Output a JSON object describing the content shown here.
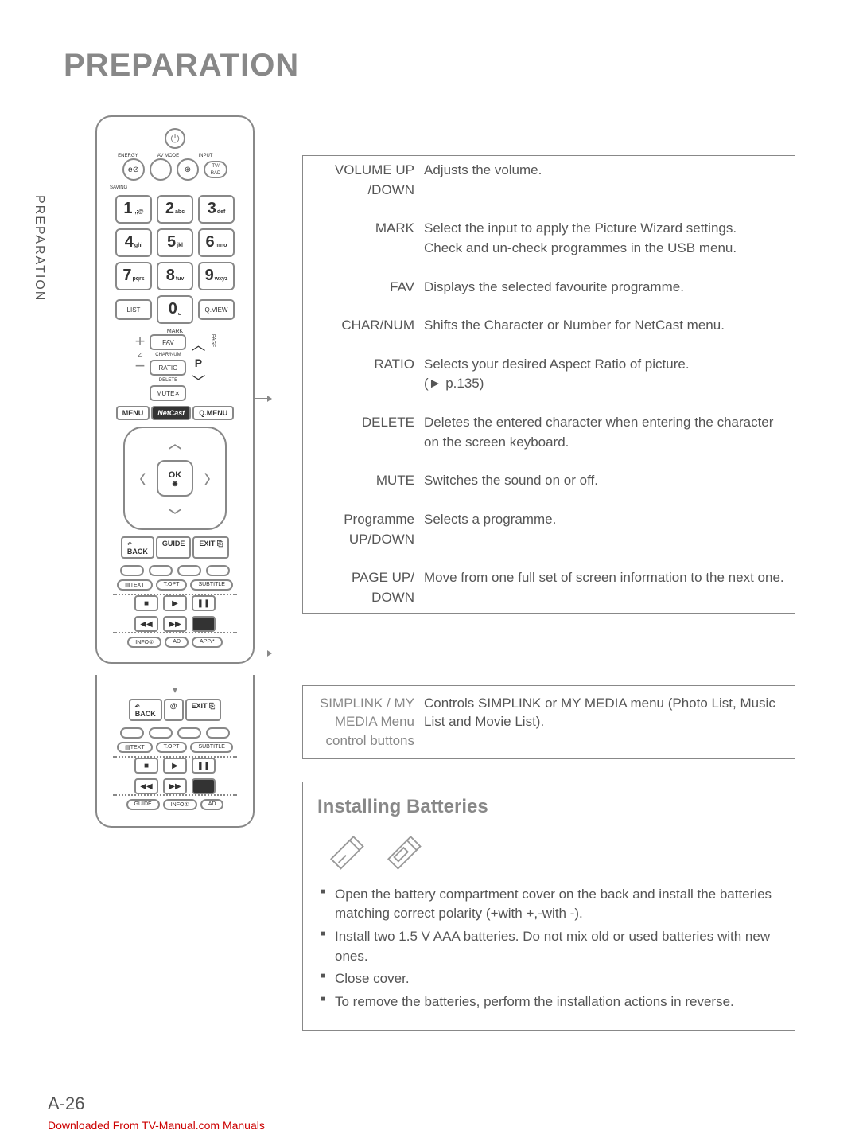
{
  "section_title": "PREPARATION",
  "vertical_label": "PREPARATION",
  "page_number": "A-26",
  "download_note": "Downloaded From TV-Manual.com Manuals",
  "remote": {
    "top_labels": [
      "ENERGY",
      "AV MODE",
      "INPUT",
      ""
    ],
    "saving": "SAVING",
    "tv_rad": "TV/\nRAD",
    "numpad": [
      {
        "n": "1",
        "s": ".,;@"
      },
      {
        "n": "2",
        "s": "abc"
      },
      {
        "n": "3",
        "s": "def"
      },
      {
        "n": "4",
        "s": "ghi"
      },
      {
        "n": "5",
        "s": "jkl"
      },
      {
        "n": "6",
        "s": "mno"
      },
      {
        "n": "7",
        "s": "pqrs"
      },
      {
        "n": "8",
        "s": "tuv"
      },
      {
        "n": "9",
        "s": "wxyz"
      }
    ],
    "list": "LIST",
    "zero": "0",
    "qview": "Q.VIEW",
    "mark": "MARK",
    "fav": "FAV",
    "charnum": "CHAR/NUM",
    "ratio": "RATIO",
    "delete": "DELETE",
    "mute": "MUTE",
    "p": "P",
    "page": "PAGE",
    "menu": "MENU",
    "netcast": "NetCast",
    "qmenu": "Q.MENU",
    "ok": "OK",
    "back": "BACK",
    "guide": "GUIDE",
    "exit": "EXIT",
    "text": "TEXT",
    "topt": "T.OPT",
    "subtitle": "SUBTITLE",
    "info": "INFO①",
    "ad": "AD",
    "app": "APP/*",
    "at": "@"
  },
  "definitions": [
    {
      "term": "VOLUME UP /DOWN",
      "desc": "Adjusts the volume."
    },
    {
      "term": "MARK",
      "desc": "Select the input to apply the Picture Wizard settings.\nCheck and un-check programmes in the USB menu."
    },
    {
      "term": "FAV",
      "desc": "Displays the selected favourite programme."
    },
    {
      "term": "CHAR/NUM",
      "desc": "Shifts the Character or Number for NetCast menu."
    },
    {
      "term": "RATIO",
      "desc": "Selects your desired Aspect Ratio of picture.",
      "pref": "(► p.135)"
    },
    {
      "term": "DELETE",
      "desc": "Deletes the entered character when entering the character on the screen keyboard."
    },
    {
      "term": "MUTE",
      "desc": "Switches the sound on or off."
    },
    {
      "term": "Programme UP/DOWN",
      "desc": "Selects a programme."
    },
    {
      "term": "PAGE UP/ DOWN",
      "desc": "Move from one full set of screen information to the next one."
    }
  ],
  "simplink": {
    "term": "SIMPLINK / MY MEDIA Menu control buttons",
    "desc": "Controls SIMPLINK or MY MEDIA menu (Photo List, Music List and Movie List)."
  },
  "battery": {
    "heading": "Installing Batteries",
    "items": [
      "Open the battery compartment cover on the back and install the batteries matching correct polarity (+with +,-with -).",
      "Install two 1.5 V AAA batteries. Do not mix old or used batteries with new ones.",
      "Close cover.",
      "To remove the batteries, perform the installation actions in reverse."
    ]
  },
  "colors": {
    "title": "#888888",
    "text": "#555555",
    "border": "#888888",
    "link": "#cc0000"
  }
}
